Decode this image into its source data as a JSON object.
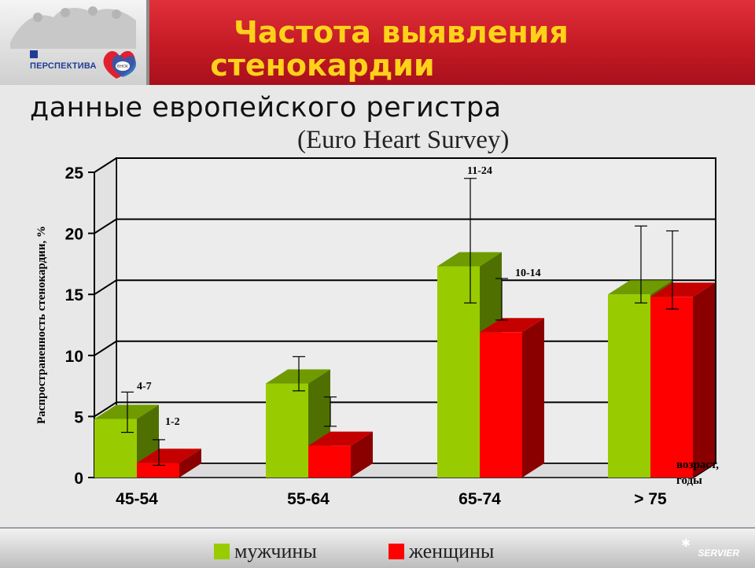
{
  "header": {
    "title_line1": "Частота выявления",
    "title_line2": "стенокардии",
    "logo_text": "ПЕРСПЕКТИВА",
    "logo_badge": "ВНОК"
  },
  "subtitle": "данные европейского регистра",
  "subtitle_source": "(Euro Heart Survey)",
  "chart_data": {
    "type": "bar",
    "title": "",
    "ylabel": "Распространенность стенокардии, %",
    "xlabel": "возраст, годы",
    "ylim": [
      0,
      25
    ],
    "yticks": [
      "0",
      "5",
      "10",
      "15",
      "20",
      "25"
    ],
    "grid": true,
    "categories": [
      "45-54",
      "55-64",
      "65-74",
      "> 75"
    ],
    "series": [
      {
        "name": "мужчины",
        "color": "#99cc00",
        "values": [
          4.8,
          7.7,
          17.3,
          15.0
        ],
        "err_low": [
          3.7,
          7.1,
          14.3,
          14.3
        ],
        "err_high": [
          7.0,
          9.9,
          24.5,
          20.6
        ]
      },
      {
        "name": "женщины",
        "color": "#ff0000",
        "values": [
          1.2,
          2.6,
          11.9,
          14.8
        ],
        "err_low": [
          1.0,
          4.2,
          12.9,
          13.8
        ],
        "err_high": [
          3.1,
          6.6,
          16.3,
          20.2
        ]
      }
    ],
    "annotations": [
      "4-7",
      "1-2",
      "11-24",
      "10-14"
    ],
    "legend_position": "bottom"
  },
  "legend": {
    "men_label": "мужчины",
    "women_label": "женщины"
  },
  "footer": {
    "brand": "SERVIER"
  }
}
